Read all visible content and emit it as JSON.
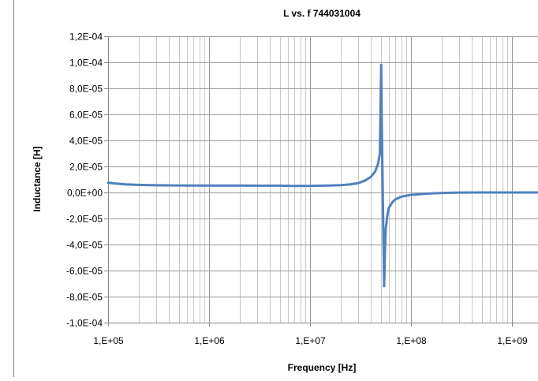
{
  "chart_data": {
    "type": "line",
    "title": "L vs. f 744031004",
    "xlabel": "Frequency [Hz]",
    "ylabel": "Inductance [H]",
    "x_scale": "log",
    "xlim": [
      100000,
      1800000000
    ],
    "ylim": [
      -0.0001,
      0.00012
    ],
    "grid": true,
    "legend": "none",
    "x_ticks": [
      {
        "value": 100000,
        "label": "1,E+05"
      },
      {
        "value": 1000000,
        "label": "1,E+06"
      },
      {
        "value": 10000000,
        "label": "1,E+07"
      },
      {
        "value": 100000000,
        "label": "1,E+08"
      },
      {
        "value": 1000000000,
        "label": "1,E+09"
      }
    ],
    "y_ticks": [
      {
        "value": 0.00012,
        "label": "1,2E-04"
      },
      {
        "value": 0.0001,
        "label": "1,0E-04"
      },
      {
        "value": 8e-05,
        "label": "8,0E-05"
      },
      {
        "value": 6e-05,
        "label": "6,0E-05"
      },
      {
        "value": 4e-05,
        "label": "4,0E-05"
      },
      {
        "value": 2e-05,
        "label": "2,0E-05"
      },
      {
        "value": 0,
        "label": "0,0E+00"
      },
      {
        "value": -2e-05,
        "label": "-2,0E-05"
      },
      {
        "value": -4e-05,
        "label": "-4,0E-05"
      },
      {
        "value": -6e-05,
        "label": "-6,0E-05"
      },
      {
        "value": -8e-05,
        "label": "-8,0E-05"
      },
      {
        "value": -0.0001,
        "label": "-1,0E-04"
      }
    ],
    "series": [
      {
        "color": "#4f81bd",
        "x": [
          100000,
          120000,
          150000,
          200000,
          300000,
          500000,
          1000000,
          2000000,
          3000000,
          5000000,
          7000000,
          10000000,
          15000000,
          20000000,
          25000000,
          30000000,
          35000000,
          40000000,
          44000000,
          47000000,
          49000000,
          50500000,
          51000000,
          52000000,
          53000000,
          54000000,
          55000000,
          56000000,
          58000000,
          60000000,
          65000000,
          70000000,
          80000000,
          100000000,
          150000000,
          200000000,
          300000000,
          500000000,
          1000000000,
          1800000000
        ],
        "y": [
          7.5e-06,
          6.8e-06,
          6.2e-06,
          5.8e-06,
          5.5e-06,
          5.4e-06,
          5.3e-06,
          5.3e-06,
          5.2e-06,
          5.2e-06,
          5e-06,
          5.1e-06,
          5.3e-06,
          5.6e-06,
          6.2e-06,
          7.2e-06,
          9.2e-06,
          1.2e-05,
          1.6e-05,
          2.2e-05,
          3e-05,
          9.8e-05,
          6e-05,
          1.5e-05,
          -3e-05,
          -7.2e-05,
          -4.5e-05,
          -2.8e-05,
          -1.8e-05,
          -1.2e-05,
          -7.5e-06,
          -5.2e-06,
          -3.2e-06,
          -1.8e-06,
          -8e-07,
          -4e-07,
          -1e-07,
          0,
          0,
          0
        ]
      }
    ]
  }
}
